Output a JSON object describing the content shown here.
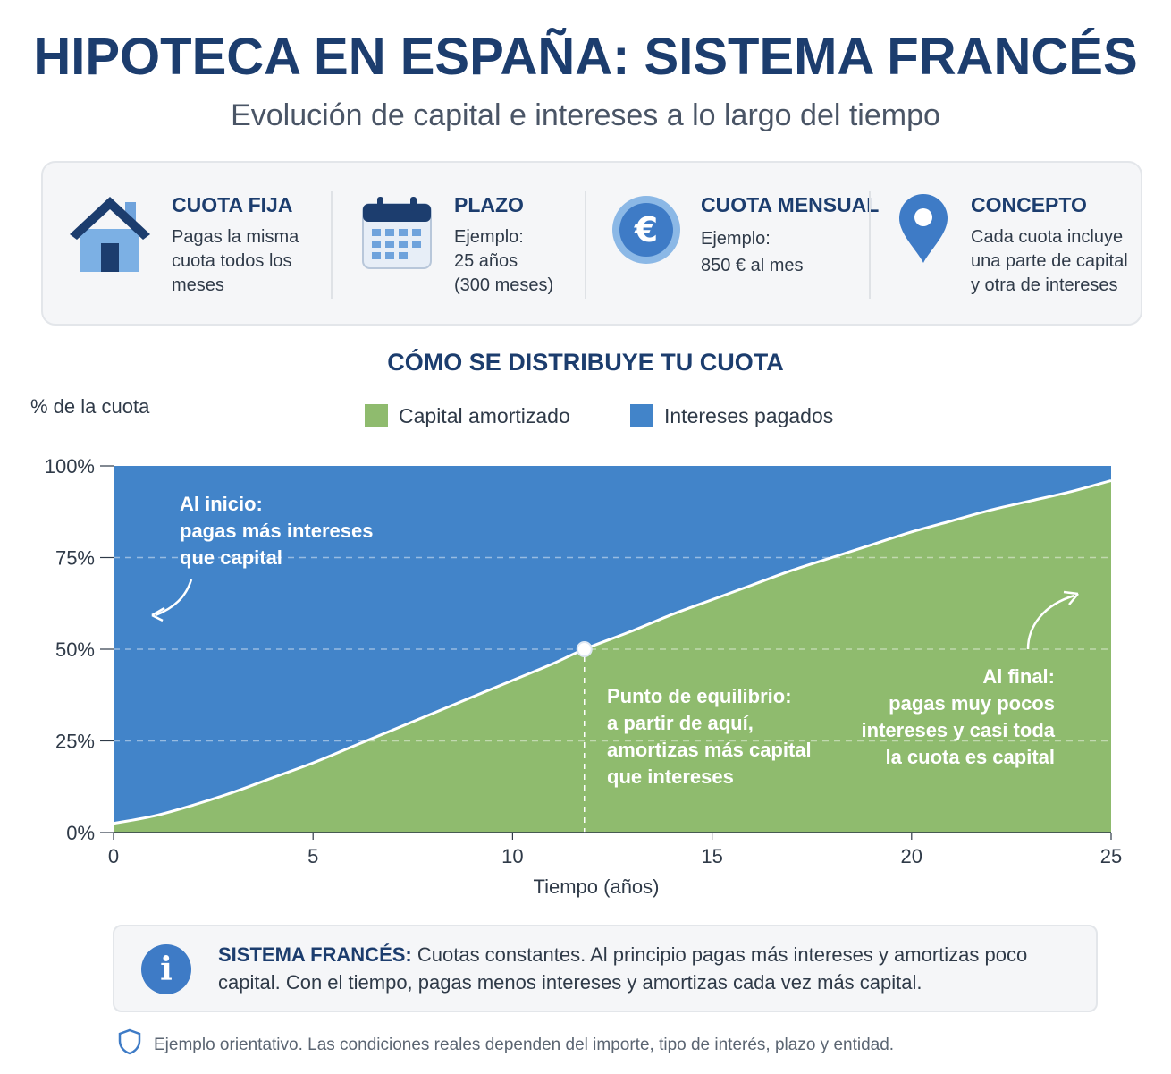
{
  "header": {
    "title": "HIPOTECA EN ESPAÑA: SISTEMA FRANCÉS",
    "subtitle": "Evolución de capital e intereses a lo largo del tiempo"
  },
  "cards": [
    {
      "icon": "house-icon",
      "title": "CUOTA FIJA",
      "text": "Pagas la misma\ncuota todos los\nmeses"
    },
    {
      "icon": "calendar-icon",
      "title": "PLAZO",
      "text": "Ejemplo:\n25 años\n(300 meses)"
    },
    {
      "icon": "euro-coin-icon",
      "title": "CUOTA MENSUAL",
      "text": "Ejemplo:\n850 € al mes"
    },
    {
      "icon": "map-pin-icon",
      "title": "CONCEPTO",
      "text": "Cada cuota incluye\nuna parte de capital\ny otra de intereses"
    }
  ],
  "chart_section": {
    "title": "CÓMO SE DISTRIBUYE TU CUOTA",
    "y_caption": "% de la cuota",
    "legend": [
      {
        "label": "Capital amortizado",
        "color": "#8fbb6e"
      },
      {
        "label": "Intereses pagados",
        "color": "#4284c9"
      }
    ]
  },
  "chart_data": {
    "type": "area",
    "stacked": true,
    "percent": true,
    "xlabel": "Tiempo (años)",
    "ylabel": "% de la cuota",
    "xlim": [
      0,
      25
    ],
    "ylim": [
      0,
      100
    ],
    "x_ticks": [
      "0",
      "5",
      "10",
      "15",
      "20",
      "25"
    ],
    "y_ticks": [
      "0%",
      "25%",
      "50%",
      "75%",
      "100%"
    ],
    "grid": "horizontal dashed",
    "legend_position": "top-center",
    "x": [
      0,
      1,
      2,
      3,
      4,
      5,
      6,
      7,
      8,
      9,
      10,
      11,
      11.8,
      13,
      14,
      15,
      16,
      17,
      18,
      19,
      20,
      21,
      22,
      23,
      24,
      25
    ],
    "series": [
      {
        "name": "Capital amortizado",
        "color": "#8fbb6e",
        "values": [
          2.5,
          4.5,
          7.5,
          11,
          15,
          19,
          23.5,
          28,
          32.5,
          37,
          41.5,
          46,
          50,
          55,
          59.5,
          63.5,
          67.5,
          71.5,
          75,
          78.5,
          82,
          85,
          88,
          90.5,
          93,
          96
        ]
      },
      {
        "name": "Intereses pagados",
        "color": "#4284c9",
        "values": [
          97.5,
          95.5,
          92.5,
          89,
          85,
          81,
          76.5,
          72,
          67.5,
          63,
          58.5,
          54,
          50,
          45,
          40.5,
          36.5,
          32.5,
          28.5,
          25,
          21.5,
          18,
          15,
          12,
          9.5,
          7,
          4
        ]
      }
    ],
    "break_even": {
      "x": 11.8,
      "y": 50
    },
    "annotations": [
      {
        "name": "annotation-start",
        "text": [
          "Al inicio:",
          "pagas más intereses",
          "que capital"
        ]
      },
      {
        "name": "annotation-break-even",
        "text": [
          "Punto de equilibrio:",
          "a partir de aquí,",
          "amortizas más capital",
          "que intereses"
        ]
      },
      {
        "name": "annotation-end",
        "text": [
          "Al final:",
          "pagas muy pocos",
          "intereses y casi toda",
          "la cuota es capital"
        ]
      }
    ]
  },
  "note": {
    "icon": "info-icon",
    "bold": "SISTEMA FRANCÉS:",
    "text": " Cuotas constantes. Al principio pagas más intereses y amortizas poco capital. Con el tiempo, pagas menos intereses y amortizas cada vez más capital."
  },
  "footer": {
    "icon": "shield-icon",
    "text": "Ejemplo orientativo. Las condiciones reales dependen del importe, tipo de interés, plazo y entidad."
  },
  "colors": {
    "title": "#1c3d6e",
    "capital": "#8fbb6e",
    "interest": "#4284c9",
    "accent": "#3e7bc6"
  }
}
